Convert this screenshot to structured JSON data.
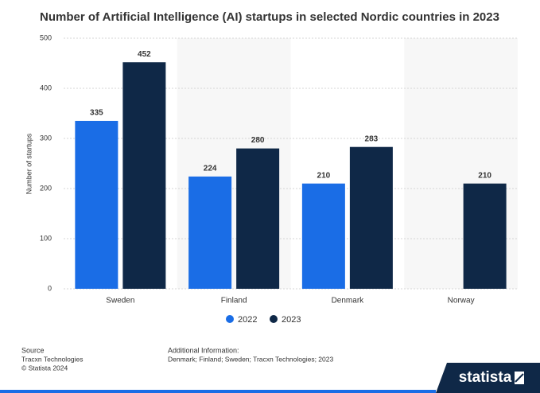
{
  "chart_data": {
    "type": "bar",
    "title": "Number of Artificial Intelligence (AI) startups in selected Nordic countries in 2023",
    "y_label": "Number of startups",
    "categories": [
      "Sweden",
      "Finland",
      "Denmark",
      "Norway"
    ],
    "series": [
      {
        "name": "2022",
        "color": "#1a6de6",
        "values": [
          335,
          224,
          210,
          null
        ]
      },
      {
        "name": "2023",
        "color": "#0f2847",
        "values": [
          452,
          280,
          283,
          210
        ]
      }
    ],
    "ylim": [
      0,
      500
    ],
    "yticks": [
      0,
      100,
      200,
      300,
      400,
      500
    ],
    "grid": true,
    "legend": "bottom"
  },
  "footer": {
    "source_heading": "Source",
    "source_lines": [
      "Tracxn Technologies",
      "© Statista 2024"
    ],
    "info_heading": "Additional Information:",
    "info_lines": [
      "Denmark; Finland; Sweden; Tracxn Technologies; 2023"
    ],
    "logo": "statista"
  }
}
